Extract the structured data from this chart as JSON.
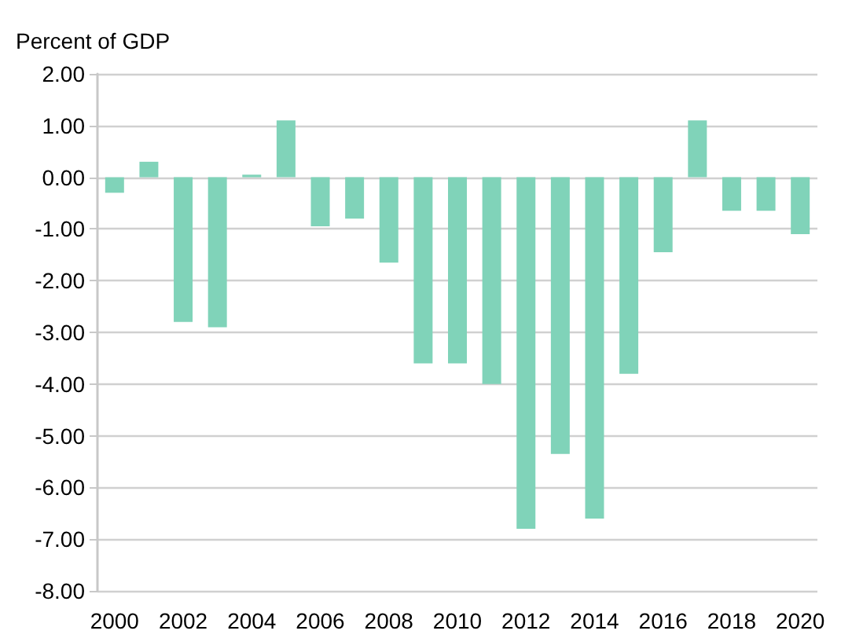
{
  "chart_data": {
    "type": "bar",
    "ylabel": "Percent of GDP",
    "categories": [
      "2000",
      null,
      "2002",
      null,
      "2004",
      null,
      "2006",
      null,
      "2008",
      null,
      "2010",
      null,
      "2012",
      null,
      "2014",
      null,
      "2016",
      null,
      "2018",
      null,
      "2020"
    ],
    "values": [
      -0.3,
      0.3,
      -2.8,
      -2.9,
      0.05,
      1.1,
      -0.95,
      -0.8,
      -1.65,
      -3.6,
      -3.6,
      -4.0,
      -6.8,
      -5.35,
      -6.6,
      -3.8,
      -1.45,
      1.1,
      -0.65,
      -0.65,
      -1.1
    ],
    "color": "#80d3b9",
    "ylim": [
      -8,
      2
    ],
    "yticks": [
      {
        "value": -8,
        "label": "-8.00"
      },
      {
        "value": -7,
        "label": "-7.00"
      },
      {
        "value": -6,
        "label": "-6.00"
      },
      {
        "value": -5,
        "label": "-5.00"
      },
      {
        "value": -4,
        "label": "-4.00"
      },
      {
        "value": -3,
        "label": "-3.00"
      },
      {
        "value": -2,
        "label": "-2.00"
      },
      {
        "value": -1,
        "label": "-1.00"
      },
      {
        "value": 0,
        "label": "0.00"
      },
      {
        "value": 1,
        "label": "1.00"
      },
      {
        "value": 2,
        "label": "2.00"
      }
    ],
    "grid": "y"
  }
}
